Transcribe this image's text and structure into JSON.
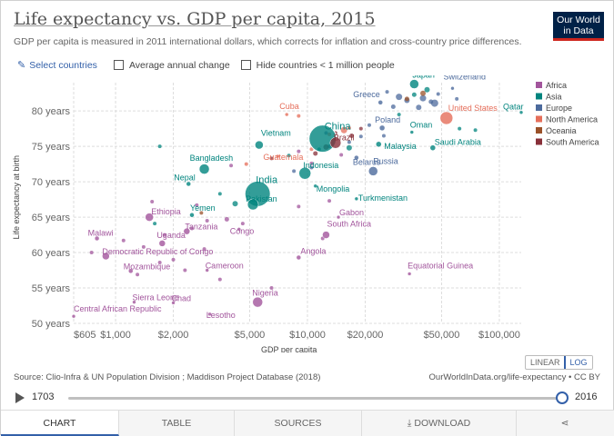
{
  "header": {
    "title": "Life expectancy vs. GDP per capita, 2015",
    "subtitle": "GDP per capita is measured in 2011 international dollars, which corrects for inflation and cross-country price differences.",
    "logo_line1": "Our World",
    "logo_line2": "in Data"
  },
  "controls": {
    "select_countries": "Select countries",
    "average_annual_change": "Average annual change",
    "hide_countries": "Hide countries < 1 million people"
  },
  "scale": {
    "linear": "LINEAR",
    "log": "LOG",
    "active": "LOG"
  },
  "footer": {
    "source": "Source: Clio-Infra & UN Population Division ; Maddison Project Database (2018)",
    "url": "OurWorldInData.org/life-expectancy • CC BY"
  },
  "timeline": {
    "start": "1703",
    "end": "2016",
    "progress": 0.985
  },
  "tabs": [
    "CHART",
    "TABLE",
    "SOURCES",
    "DOWNLOAD"
  ],
  "icons": {
    "share": "share-icon",
    "download": "download-icon",
    "play": "play-icon",
    "edit": "pencil-icon"
  },
  "chart_data": {
    "type": "scatter",
    "title": "Life expectancy vs. GDP per capita, 2015",
    "xlabel": "GDP per capita",
    "ylabel": "Life expectancy at birth",
    "xscale": "log",
    "xlim": [
      605,
      130000
    ],
    "ylim": [
      50,
      84
    ],
    "xticks": [
      605,
      1000,
      2000,
      5000,
      10000,
      20000,
      50000,
      100000
    ],
    "xtick_labels": [
      "$605",
      "$1,000",
      "$2,000",
      "$5,000",
      "$10,000",
      "$20,000",
      "$50,000",
      "$100,000"
    ],
    "yticks": [
      50,
      55,
      60,
      65,
      70,
      75,
      80
    ],
    "ytick_labels": [
      "50 years",
      "55 years",
      "60 years",
      "65 years",
      "70 years",
      "75 years",
      "80 years"
    ],
    "grid": true,
    "legend_position": "right",
    "colors": {
      "Africa": "#a2559c",
      "Asia": "#00847e",
      "Europe": "#4c6a9c",
      "North America": "#e56e5a",
      "Oceania": "#9a5129",
      "South America": "#883039"
    },
    "legend": [
      "Africa",
      "Asia",
      "Europe",
      "North America",
      "Oceania",
      "South America"
    ],
    "labeled_points": [
      {
        "name": "Japan",
        "region": "Asia",
        "x": 36000,
        "y": 83.8,
        "r": 5
      },
      {
        "name": "Switzerland",
        "region": "Europe",
        "x": 57000,
        "y": 83.2,
        "r": 2
      },
      {
        "name": "Greece",
        "region": "Europe",
        "x": 24000,
        "y": 81.2,
        "r": 2.5
      },
      {
        "name": "Qatar",
        "region": "Asia",
        "x": 130000,
        "y": 79.8,
        "r": 2
      },
      {
        "name": "United States",
        "region": "North America",
        "x": 53000,
        "y": 79.0,
        "r": 7
      },
      {
        "name": "Cuba",
        "region": "North America",
        "x": 7800,
        "y": 79.5,
        "r": 2
      },
      {
        "name": "Poland",
        "region": "Europe",
        "x": 24500,
        "y": 77.6,
        "r": 3
      },
      {
        "name": "China",
        "region": "Asia",
        "x": 12000,
        "y": 76.1,
        "r": 15
      },
      {
        "name": "Oman",
        "region": "Asia",
        "x": 35000,
        "y": 77.0,
        "r": 2
      },
      {
        "name": "Vietnam",
        "region": "Asia",
        "x": 5600,
        "y": 75.2,
        "r": 4.5
      },
      {
        "name": "Brazil",
        "region": "South America",
        "x": 14000,
        "y": 75.5,
        "r": 6
      },
      {
        "name": "Malaysia",
        "region": "Asia",
        "x": 23500,
        "y": 75.3,
        "r": 3
      },
      {
        "name": "Saudi Arabia",
        "region": "Asia",
        "x": 45000,
        "y": 74.8,
        "r": 3
      },
      {
        "name": "Guatemala",
        "region": "North America",
        "x": 7000,
        "y": 73.6,
        "r": 2
      },
      {
        "name": "Belarus",
        "region": "Europe",
        "x": 18000,
        "y": 73.4,
        "r": 2.5
      },
      {
        "name": "Bangladesh",
        "region": "Asia",
        "x": 2900,
        "y": 71.8,
        "r": 5.5
      },
      {
        "name": "Indonesia",
        "region": "Asia",
        "x": 9700,
        "y": 71.2,
        "r": 6.5
      },
      {
        "name": "Russia",
        "region": "Europe",
        "x": 22000,
        "y": 71.5,
        "r": 5
      },
      {
        "name": "Nepal",
        "region": "Asia",
        "x": 2400,
        "y": 69.7,
        "r": 2.5
      },
      {
        "name": "India",
        "region": "Asia",
        "x": 5500,
        "y": 68.3,
        "r": 14
      },
      {
        "name": "Mongolia",
        "region": "Asia",
        "x": 11000,
        "y": 69.4,
        "r": 2
      },
      {
        "name": "Pakistan",
        "region": "Asia",
        "x": 5200,
        "y": 66.8,
        "r": 6
      },
      {
        "name": "Turkmenistan",
        "region": "Asia",
        "x": 18000,
        "y": 67.6,
        "r": 2
      },
      {
        "name": "Yemen",
        "region": "Asia",
        "x": 2500,
        "y": 65.3,
        "r": 2.5
      },
      {
        "name": "Ethiopia",
        "region": "Africa",
        "x": 1500,
        "y": 65.0,
        "r": 4.5
      },
      {
        "name": "Gabon",
        "region": "Africa",
        "x": 14500,
        "y": 65.0,
        "r": 2
      },
      {
        "name": "Tanzania",
        "region": "Africa",
        "x": 2350,
        "y": 63.0,
        "r": 3.5
      },
      {
        "name": "Congo",
        "region": "Africa",
        "x": 4400,
        "y": 63.3,
        "r": 2
      },
      {
        "name": "South Africa",
        "region": "Africa",
        "x": 12500,
        "y": 62.5,
        "r": 4
      },
      {
        "name": "Malawi",
        "region": "Africa",
        "x": 800,
        "y": 62.0,
        "r": 2.5
      },
      {
        "name": "Uganda",
        "region": "Africa",
        "x": 1750,
        "y": 61.3,
        "r": 3.5
      },
      {
        "name": "Democratic Republic of Congo",
        "region": "Africa",
        "x": 890,
        "y": 59.5,
        "r": 4
      },
      {
        "name": "Angola",
        "region": "Africa",
        "x": 9000,
        "y": 59.3,
        "r": 2.5
      },
      {
        "name": "Cameroon",
        "region": "Africa",
        "x": 3000,
        "y": 57.5,
        "r": 2
      },
      {
        "name": "Mozambique",
        "region": "Africa",
        "x": 1200,
        "y": 57.4,
        "r": 2.5
      },
      {
        "name": "Equatorial Guinea",
        "region": "Africa",
        "x": 34000,
        "y": 57.0,
        "r": 2
      },
      {
        "name": "Sierra Leone",
        "region": "Africa",
        "x": 1250,
        "y": 53.0,
        "r": 2
      },
      {
        "name": "Chad",
        "region": "Africa",
        "x": 2000,
        "y": 52.9,
        "r": 2
      },
      {
        "name": "Nigeria",
        "region": "Africa",
        "x": 5500,
        "y": 53.0,
        "r": 5.5
      },
      {
        "name": "Lesotho",
        "region": "Africa",
        "x": 3100,
        "y": 51.3,
        "r": 2
      },
      {
        "name": "Central African Republic",
        "region": "Africa",
        "x": 605,
        "y": 51.0,
        "r": 2
      }
    ],
    "other_points": [
      {
        "region": "Europe",
        "x": 30000,
        "y": 82.0,
        "r": 3.5
      },
      {
        "region": "Europe",
        "x": 33000,
        "y": 81.5,
        "r": 3
      },
      {
        "region": "Europe",
        "x": 40000,
        "y": 81.8,
        "r": 3.5
      },
      {
        "region": "Europe",
        "x": 44000,
        "y": 81.3,
        "r": 2.5
      },
      {
        "region": "Europe",
        "x": 46000,
        "y": 81.1,
        "r": 4
      },
      {
        "region": "Europe",
        "x": 28000,
        "y": 80.6,
        "r": 2.5
      },
      {
        "region": "Europe",
        "x": 38000,
        "y": 80.5,
        "r": 3
      },
      {
        "region": "Europe",
        "x": 48000,
        "y": 82.4,
        "r": 2
      },
      {
        "region": "Europe",
        "x": 60000,
        "y": 81.7,
        "r": 2
      },
      {
        "region": "Europe",
        "x": 26000,
        "y": 82.7,
        "r": 2
      },
      {
        "region": "Europe",
        "x": 21000,
        "y": 78.0,
        "r": 2
      },
      {
        "region": "Europe",
        "x": 19000,
        "y": 76.4,
        "r": 2
      },
      {
        "region": "Europe",
        "x": 16500,
        "y": 75.6,
        "r": 2
      },
      {
        "region": "Europe",
        "x": 25000,
        "y": 76.5,
        "r": 2
      },
      {
        "region": "Europe",
        "x": 13000,
        "y": 75.0,
        "r": 2
      },
      {
        "region": "Europe",
        "x": 10500,
        "y": 72.0,
        "r": 2
      },
      {
        "region": "Europe",
        "x": 12500,
        "y": 76.9,
        "r": 2
      },
      {
        "region": "Europe",
        "x": 8500,
        "y": 71.5,
        "r": 2
      },
      {
        "region": "Asia",
        "x": 36000,
        "y": 82.3,
        "r": 2.5
      },
      {
        "region": "Asia",
        "x": 42000,
        "y": 83.0,
        "r": 3
      },
      {
        "region": "Asia",
        "x": 62000,
        "y": 77.5,
        "r": 2
      },
      {
        "region": "Asia",
        "x": 75000,
        "y": 77.3,
        "r": 2
      },
      {
        "region": "Asia",
        "x": 30000,
        "y": 79.5,
        "r": 2
      },
      {
        "region": "Asia",
        "x": 16500,
        "y": 74.8,
        "r": 3
      },
      {
        "region": "Asia",
        "x": 1700,
        "y": 75.0,
        "r": 2
      },
      {
        "region": "Asia",
        "x": 3500,
        "y": 68.3,
        "r": 2
      },
      {
        "region": "Asia",
        "x": 4200,
        "y": 66.9,
        "r": 3
      },
      {
        "region": "Asia",
        "x": 1600,
        "y": 64.1,
        "r": 2
      },
      {
        "region": "Asia",
        "x": 8000,
        "y": 73.7,
        "r": 2
      },
      {
        "region": "Asia",
        "x": 11500,
        "y": 74.6,
        "r": 2
      },
      {
        "region": "North America",
        "x": 13000,
        "y": 76.7,
        "r": 2
      },
      {
        "region": "North America",
        "x": 15500,
        "y": 77.3,
        "r": 3.5
      },
      {
        "region": "North America",
        "x": 10500,
        "y": 74.6,
        "r": 2
      },
      {
        "region": "North America",
        "x": 9000,
        "y": 79.3,
        "r": 2
      },
      {
        "region": "North America",
        "x": 16500,
        "y": 77.6,
        "r": 2
      },
      {
        "region": "North America",
        "x": 4800,
        "y": 72.5,
        "r": 2
      },
      {
        "region": "South America",
        "x": 17000,
        "y": 76.5,
        "r": 2.5
      },
      {
        "region": "South America",
        "x": 19000,
        "y": 77.5,
        "r": 2
      },
      {
        "region": "South America",
        "x": 12500,
        "y": 74.9,
        "r": 3
      },
      {
        "region": "South America",
        "x": 14000,
        "y": 76.9,
        "r": 2
      },
      {
        "region": "South America",
        "x": 6500,
        "y": 73.3,
        "r": 2
      },
      {
        "region": "South America",
        "x": 11000,
        "y": 74.0,
        "r": 2.5
      },
      {
        "region": "Africa",
        "x": 4000,
        "y": 72.3,
        "r": 2
      },
      {
        "region": "Africa",
        "x": 10500,
        "y": 72.6,
        "r": 2
      },
      {
        "region": "Africa",
        "x": 15000,
        "y": 73.8,
        "r": 2
      },
      {
        "region": "Africa",
        "x": 9000,
        "y": 74.3,
        "r": 2
      },
      {
        "region": "Africa",
        "x": 3000,
        "y": 64.5,
        "r": 2
      },
      {
        "region": "Africa",
        "x": 2500,
        "y": 63.4,
        "r": 2
      },
      {
        "region": "Africa",
        "x": 3800,
        "y": 64.7,
        "r": 2.5
      },
      {
        "region": "Africa",
        "x": 2900,
        "y": 60.5,
        "r": 2
      },
      {
        "region": "Africa",
        "x": 2000,
        "y": 59.0,
        "r": 2
      },
      {
        "region": "Africa",
        "x": 1800,
        "y": 62.5,
        "r": 2
      },
      {
        "region": "Africa",
        "x": 1400,
        "y": 60.8,
        "r": 2
      },
      {
        "region": "Africa",
        "x": 1100,
        "y": 61.7,
        "r": 2
      },
      {
        "region": "Africa",
        "x": 1550,
        "y": 67.2,
        "r": 2
      },
      {
        "region": "Africa",
        "x": 750,
        "y": 60.0,
        "r": 2
      },
      {
        "region": "Africa",
        "x": 2300,
        "y": 57.5,
        "r": 2
      },
      {
        "region": "Africa",
        "x": 1700,
        "y": 58.6,
        "r": 2
      },
      {
        "region": "Africa",
        "x": 3500,
        "y": 56.2,
        "r": 2
      },
      {
        "region": "Africa",
        "x": 6500,
        "y": 55.0,
        "r": 2
      },
      {
        "region": "Africa",
        "x": 9000,
        "y": 66.5,
        "r": 2
      },
      {
        "region": "Africa",
        "x": 13000,
        "y": 67.3,
        "r": 2
      },
      {
        "region": "Africa",
        "x": 2650,
        "y": 66.7,
        "r": 2
      },
      {
        "region": "Africa",
        "x": 1300,
        "y": 56.9,
        "r": 2
      },
      {
        "region": "Africa",
        "x": 4600,
        "y": 64.1,
        "r": 2
      },
      {
        "region": "Africa",
        "x": 12000,
        "y": 62.0,
        "r": 2
      },
      {
        "region": "Oceania",
        "x": 40000,
        "y": 82.5,
        "r": 3
      },
      {
        "region": "Oceania",
        "x": 33000,
        "y": 81.7,
        "r": 2.5
      },
      {
        "region": "Oceania",
        "x": 2800,
        "y": 65.6,
        "r": 2
      }
    ]
  }
}
